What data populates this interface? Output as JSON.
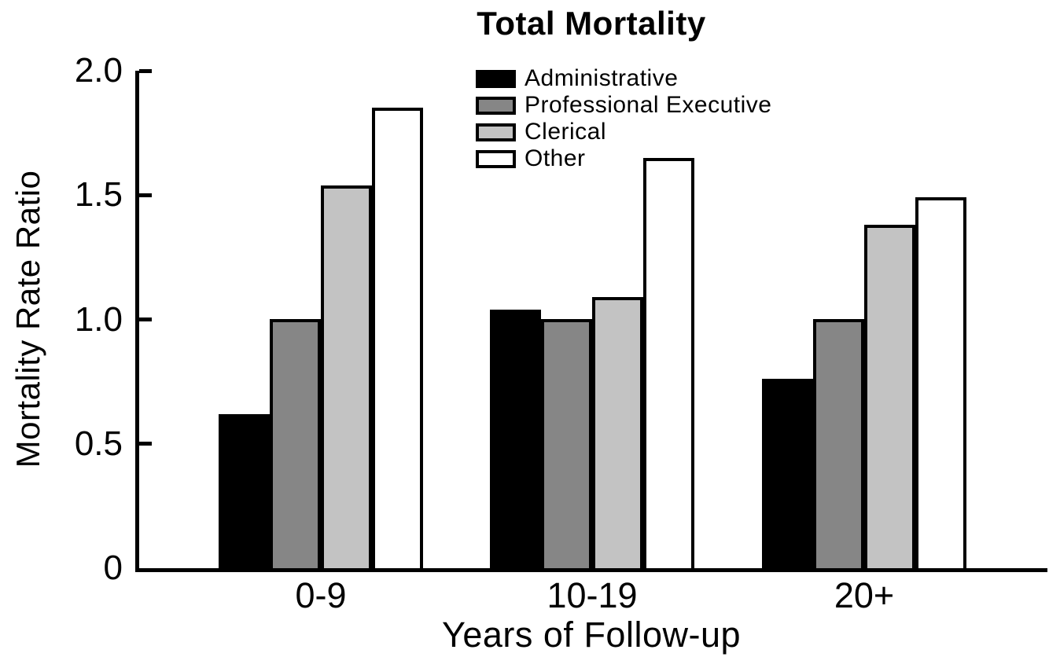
{
  "chart_data": {
    "type": "bar",
    "title": "Total Mortality",
    "xlabel": "Years of Follow-up",
    "ylabel": "Mortality Rate Ratio",
    "categories": [
      "0-9",
      "10-19",
      "20+"
    ],
    "series": [
      {
        "name": "Administrative",
        "color": "#000000",
        "values": [
          0.62,
          1.04,
          0.76
        ]
      },
      {
        "name": "Professional Executive",
        "color": "#868686",
        "values": [
          1.0,
          1.0,
          1.0
        ]
      },
      {
        "name": "Clerical",
        "color": "#c3c3c3",
        "values": [
          1.54,
          1.09,
          1.38
        ]
      },
      {
        "name": "Other",
        "color": "#ffffff",
        "values": [
          1.85,
          1.65,
          1.49
        ]
      }
    ],
    "ylim": [
      0,
      2.0
    ],
    "yticks": [
      {
        "value": 0,
        "label": "0"
      },
      {
        "value": 0.5,
        "label": "0.5"
      },
      {
        "value": 1.0,
        "label": "1.0"
      },
      {
        "value": 1.5,
        "label": "1.5"
      },
      {
        "value": 2.0,
        "label": "2.0"
      }
    ],
    "grid": false,
    "legend_position": "top-center-inside",
    "bar_border_color": "#000000",
    "axis_color": "#000000"
  }
}
